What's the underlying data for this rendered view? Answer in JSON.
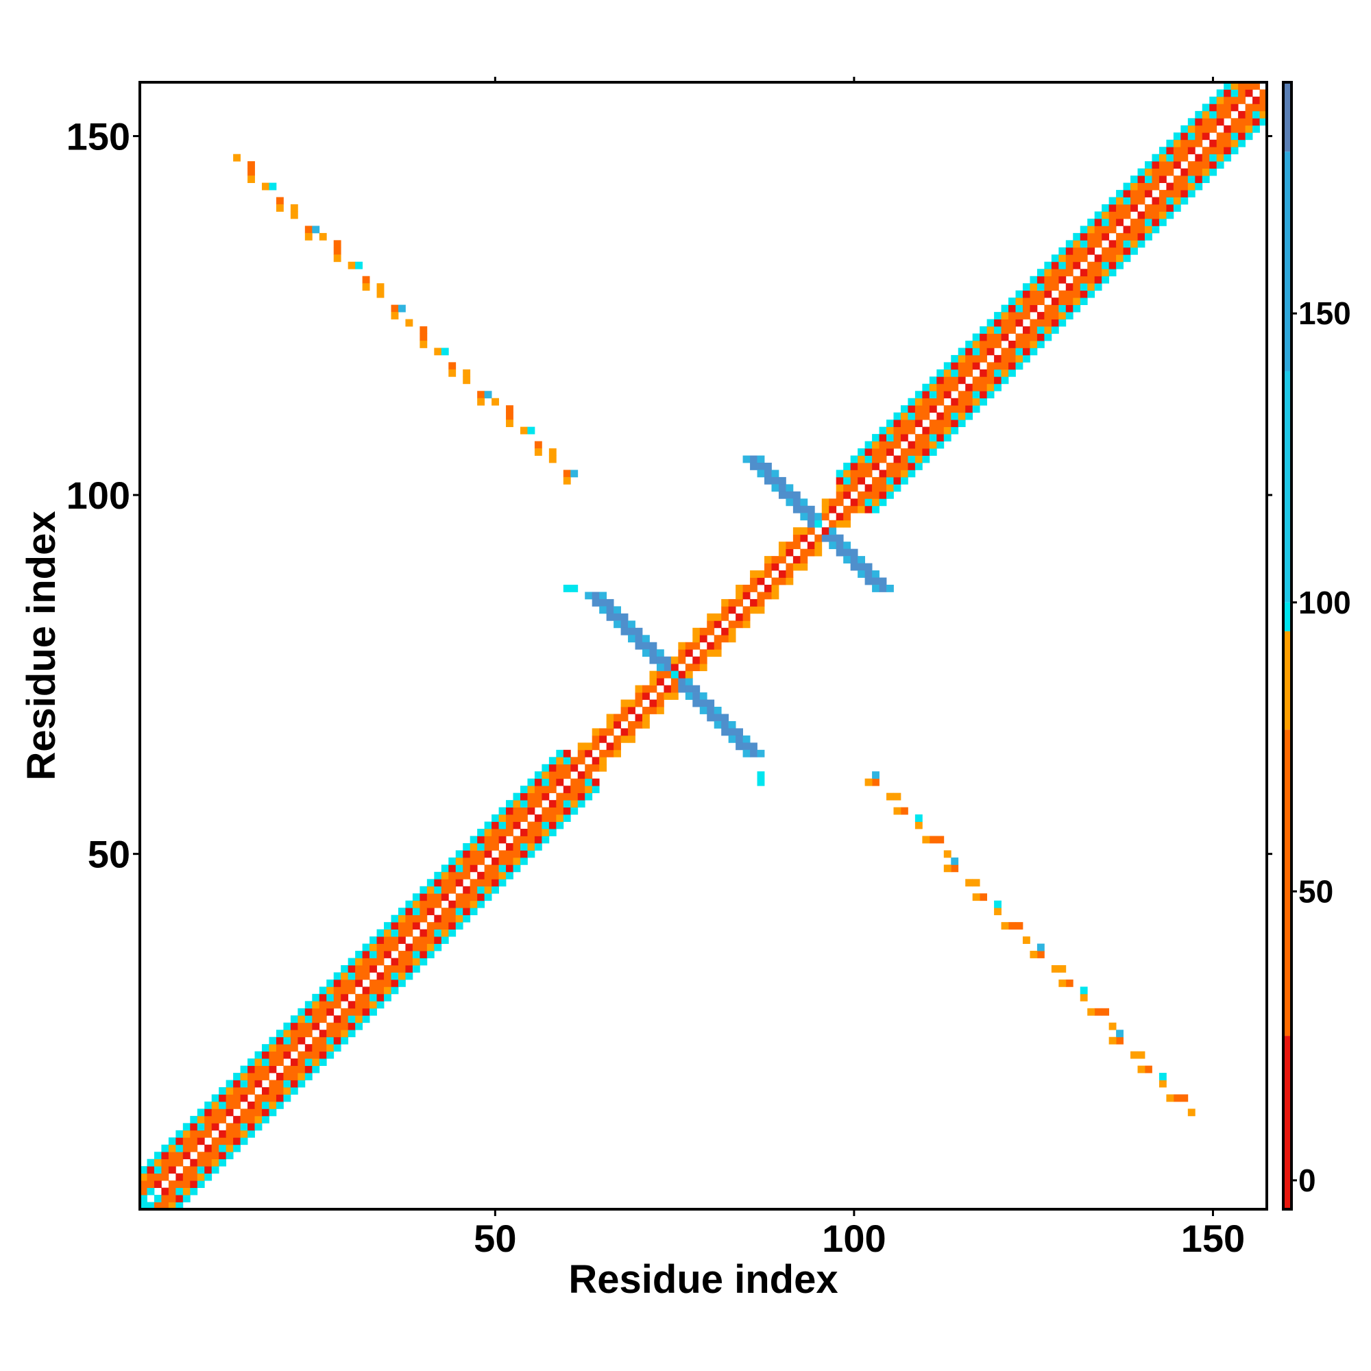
{
  "chart_data": {
    "type": "heatmap",
    "title": "",
    "xlabel": "Residue index",
    "ylabel": "Residue index",
    "xlim": [
      1,
      157
    ],
    "ylim": [
      1,
      157
    ],
    "x_ticks": [
      50,
      100,
      150
    ],
    "x_tick_labels": [
      "50",
      "100",
      "150"
    ],
    "y_ticks": [
      50,
      100,
      150
    ],
    "y_tick_labels": [
      "50",
      "100",
      "150"
    ],
    "grid": false,
    "colorbar": {
      "range": [
        -5,
        190
      ],
      "ticks": [
        0,
        50,
        100,
        150
      ],
      "tick_labels": [
        "0",
        "50",
        "100",
        "150"
      ],
      "bands": [
        {
          "from": -5,
          "to": 25,
          "color": "#e8170e"
        },
        {
          "from": 25,
          "to": 78,
          "color": "#ff6a00"
        },
        {
          "from": 78,
          "to": 95,
          "color": "#ff9f00"
        },
        {
          "from": 95,
          "to": 100,
          "color": "#00e5ee"
        },
        {
          "from": 100,
          "to": 140,
          "color": "#1fc8e8"
        },
        {
          "from": 140,
          "to": 178,
          "color": "#2fa8dc"
        },
        {
          "from": 178,
          "to": 190,
          "color": "#5a7fb5"
        }
      ]
    },
    "colors": {
      "red": "#e8170e",
      "orange": "#ff6a00",
      "amber": "#ff9f00",
      "cyan": "#00e5ee",
      "skyblue": "#2fb4e0",
      "steelblue": "#4f8fcc"
    },
    "regions": {
      "main_diagonal": {
        "from": 1,
        "to": 157
      },
      "helix_segments": [
        [
          1,
          62
        ],
        [
          100,
          157
        ],
        [
          62,
          100
        ]
      ],
      "antiparallel_strand_pairs": [
        {
          "i_range": [
            14,
            60
          ],
          "j_range": [
            103,
            147
          ]
        }
      ],
      "cross_contacts": [
        {
          "center": [
            75,
            75
          ],
          "arm_range": [
            64,
            86
          ]
        },
        {
          "center": [
            95,
            96
          ],
          "arm_range": [
            86,
            104
          ]
        }
      ]
    }
  }
}
